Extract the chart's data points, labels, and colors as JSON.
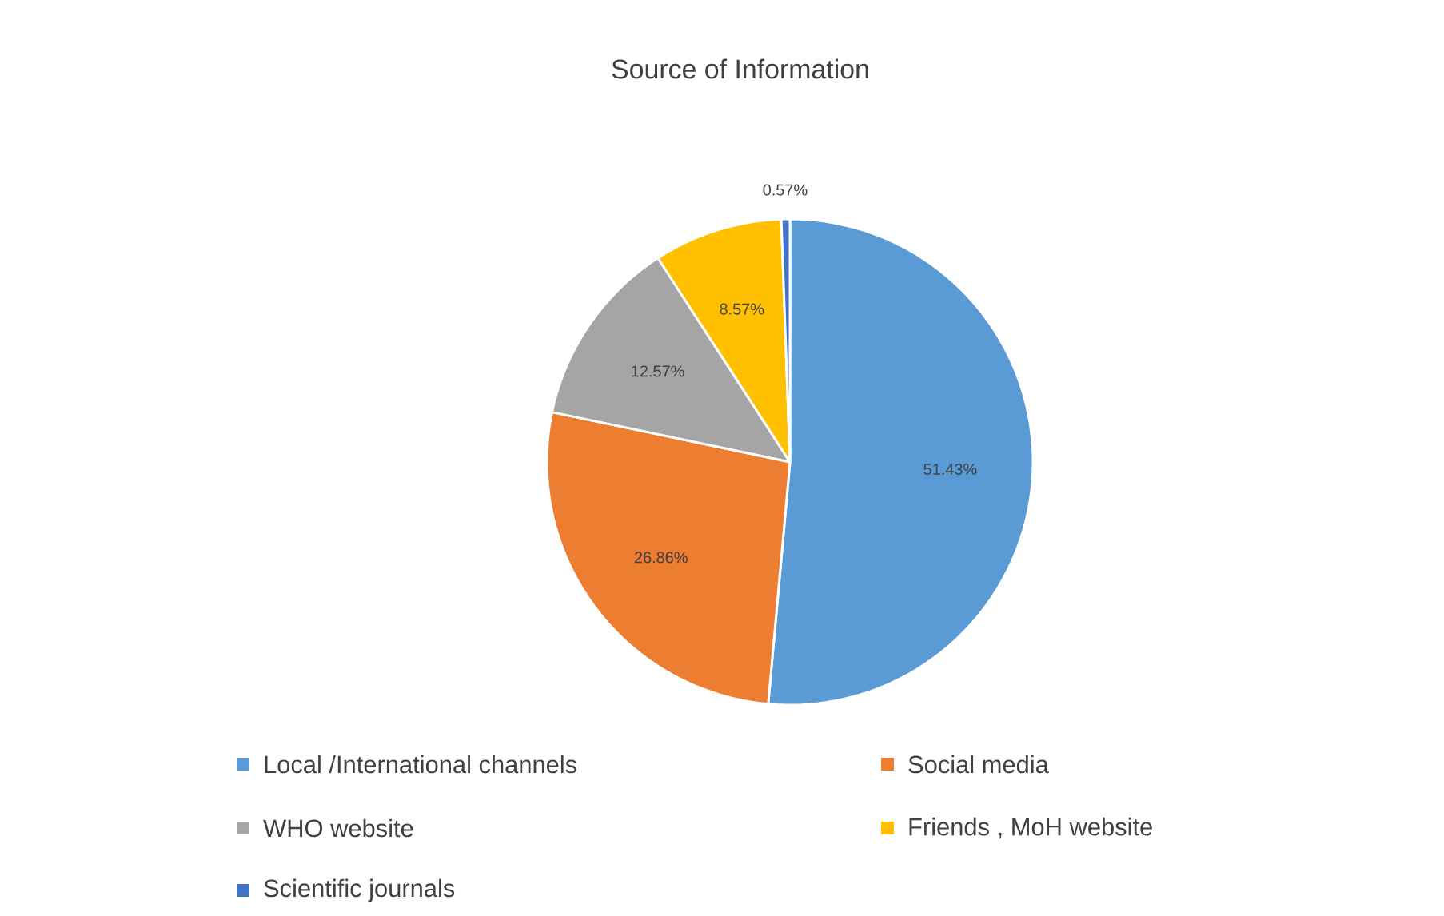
{
  "chart_data": {
    "type": "pie",
    "title": "Source of Information",
    "categories": [
      "Local /International channels",
      "Social media",
      "WHO website",
      "Friends , MoH website",
      "Scientific journals"
    ],
    "values": [
      51.43,
      26.86,
      12.57,
      8.57,
      0.57
    ],
    "colors": [
      "#5b9bd5",
      "#ed7d31",
      "#a5a5a5",
      "#ffc000",
      "#4472c4"
    ],
    "value_labels": [
      "51.43%",
      "26.86%",
      "12.57%",
      "8.57%",
      "0.57%"
    ],
    "legend": "bottom"
  }
}
